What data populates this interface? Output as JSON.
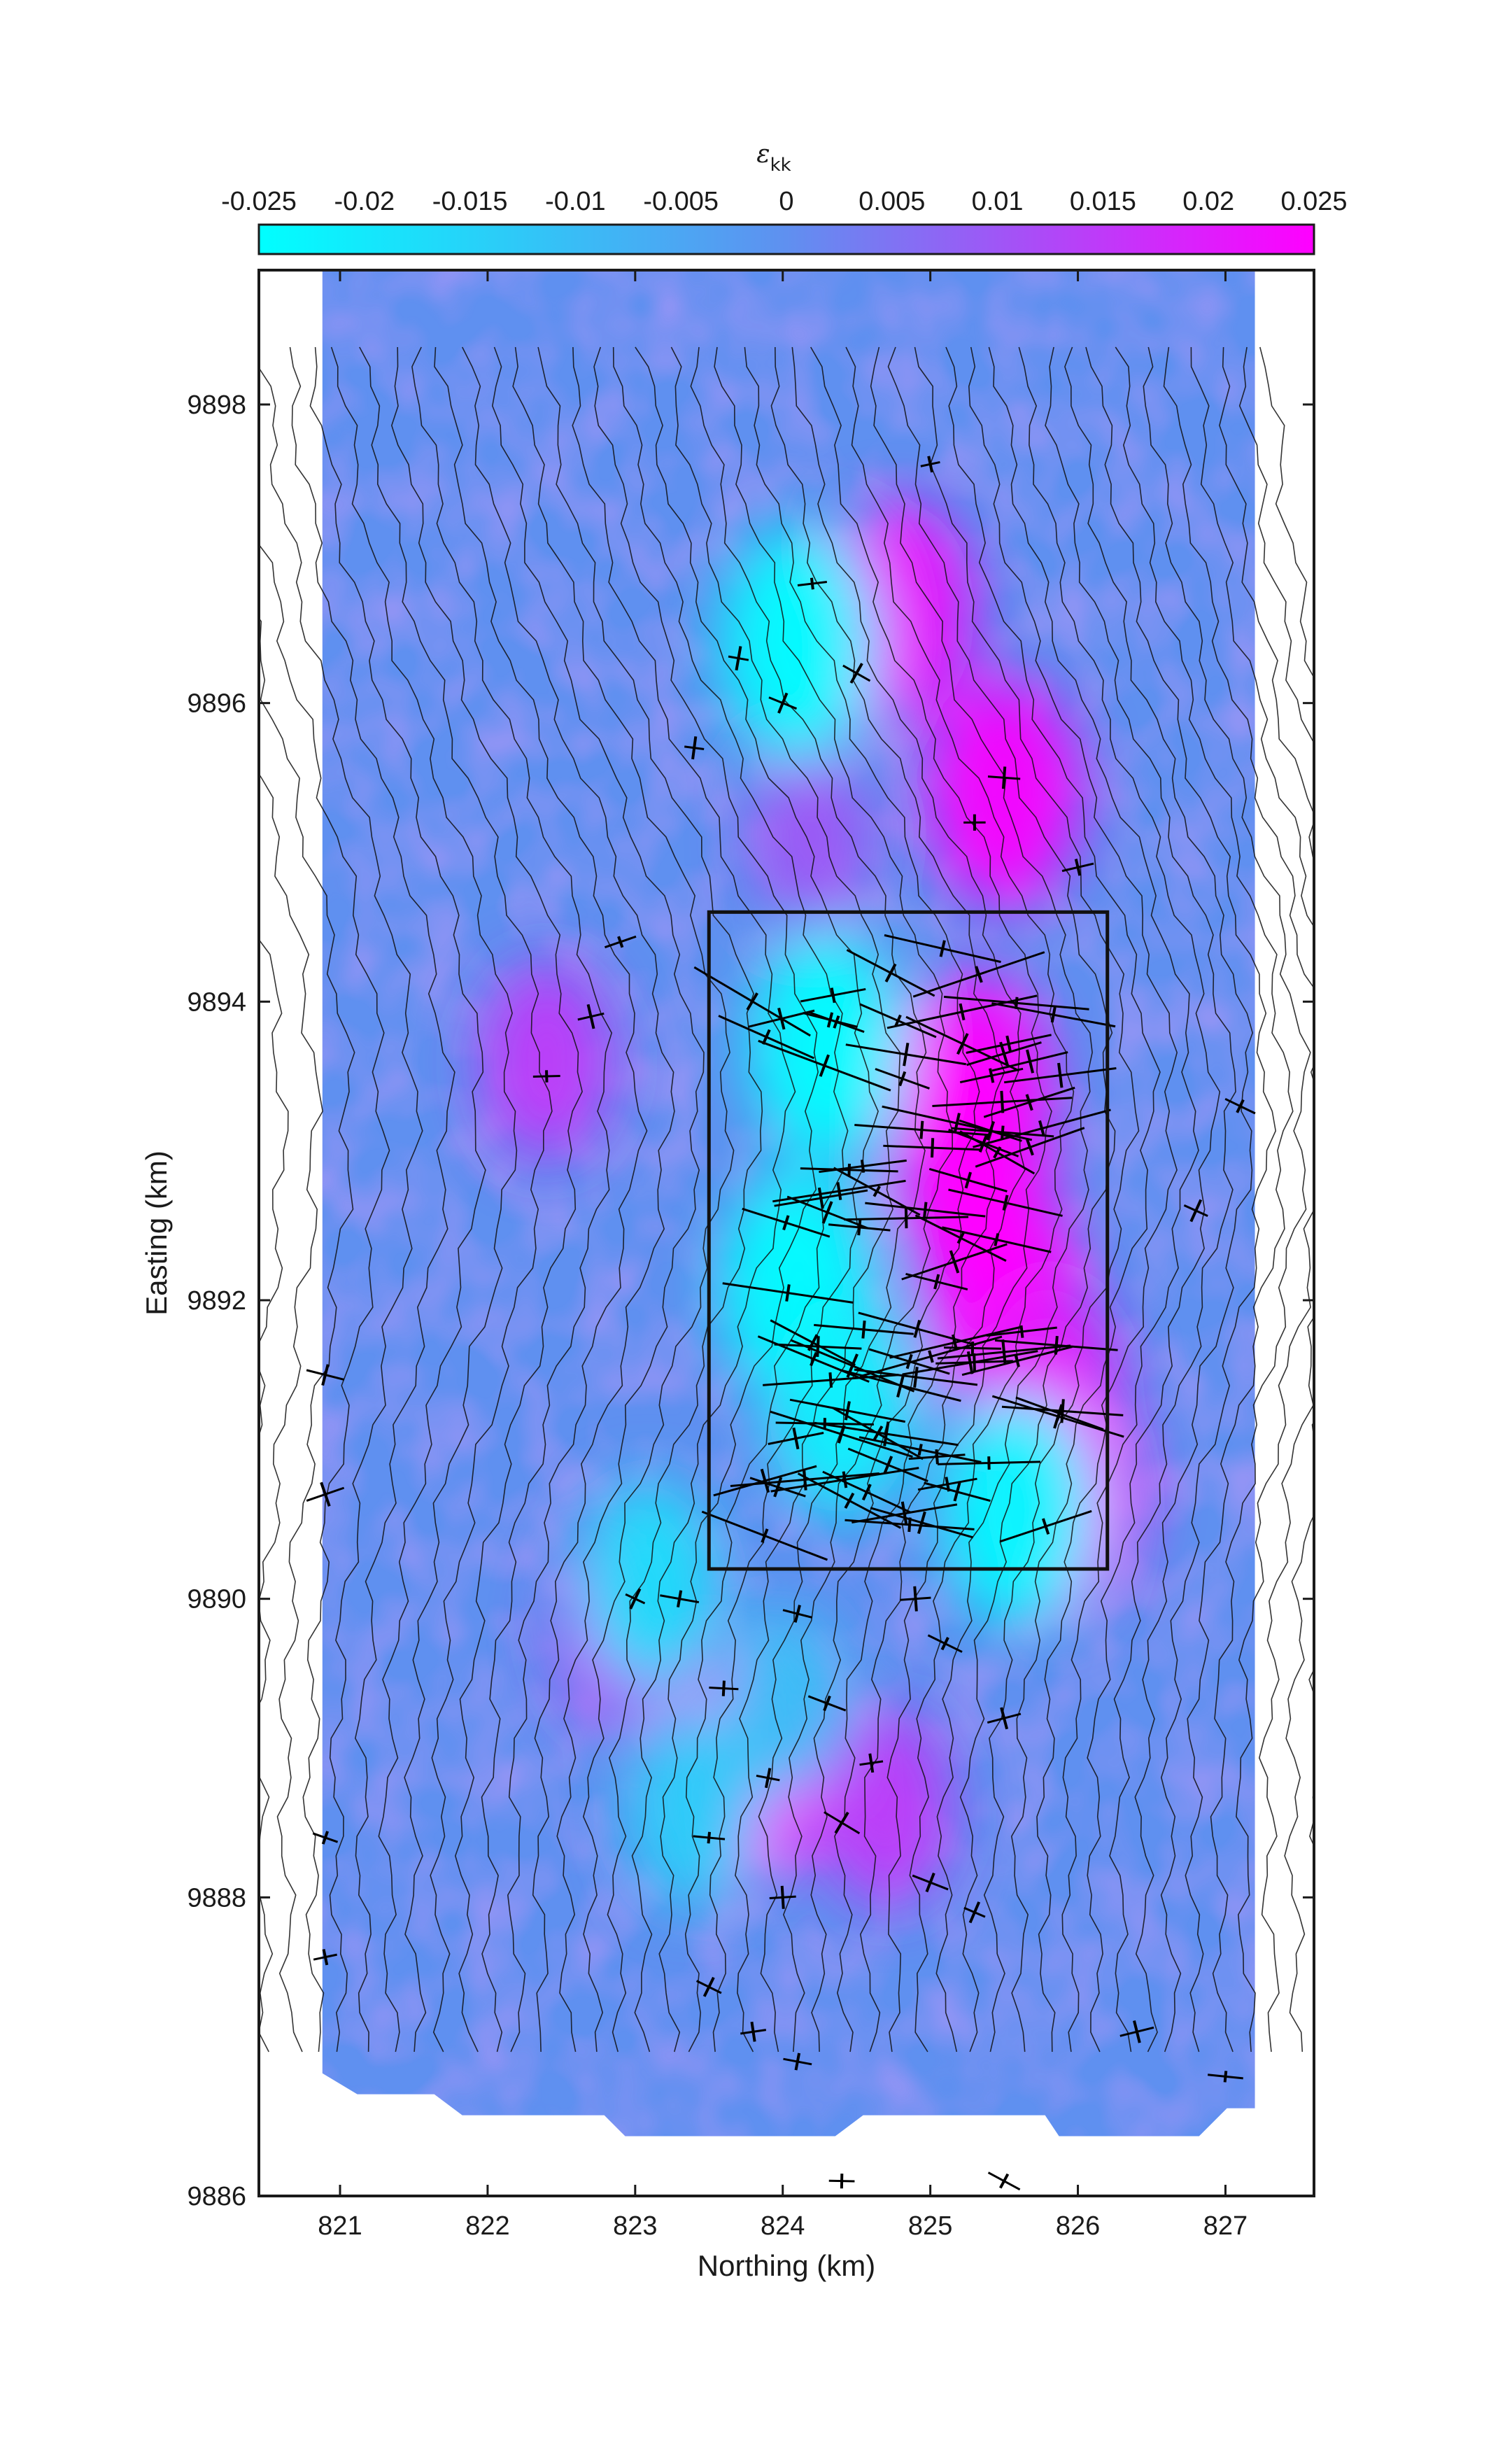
{
  "chart_data": {
    "type": "heatmap",
    "title": "",
    "xlabel": "Northing (km)",
    "ylabel": "Easting (km)",
    "xlim": [
      820.45,
      827.6
    ],
    "ylim": [
      9886.0,
      9898.9
    ],
    "x_ticks": [
      "821",
      "822",
      "823",
      "824",
      "825",
      "826",
      "827"
    ],
    "y_ticks": [
      "9886",
      "9888",
      "9890",
      "9892",
      "9894",
      "9896",
      "9898"
    ],
    "colorbar": {
      "label_main": "ε",
      "label_sub": "kk",
      "min": -0.025,
      "max": 0.025,
      "ticks": [
        "-0.025",
        "-0.02",
        "-0.015",
        "-0.01",
        "-0.005",
        "0",
        "0.005",
        "0.01",
        "0.015",
        "0.02",
        "0.025"
      ],
      "colormap": [
        "#00ffff",
        "#5f90f0",
        "#ff00ff"
      ],
      "location": "top"
    },
    "data_extent": {
      "x": [
        820.88,
        827.2
      ],
      "y": [
        9886.4,
        9898.9
      ]
    },
    "hotspots": [
      {
        "x": 824.8,
        "y": 9896.6,
        "value": 0.022
      },
      {
        "x": 825.5,
        "y": 9895.4,
        "value": 0.024
      },
      {
        "x": 825.3,
        "y": 9893.4,
        "value": 0.025
      },
      {
        "x": 825.3,
        "y": 9892.8,
        "value": 0.025
      },
      {
        "x": 825.5,
        "y": 9892.0,
        "value": 0.025
      },
      {
        "x": 825.8,
        "y": 9891.4,
        "value": 0.02
      },
      {
        "x": 825.9,
        "y": 9890.7,
        "value": 0.025
      },
      {
        "x": 823.8,
        "y": 9888.9,
        "value": 0.025
      },
      {
        "x": 822.4,
        "y": 9893.6,
        "value": 0.015
      },
      {
        "x": 822.9,
        "y": 9889.8,
        "value": 0.015
      },
      {
        "x": 824.7,
        "y": 9888.6,
        "value": 0.015
      },
      {
        "x": 824.2,
        "y": 9895.1,
        "value": 0.01
      },
      {
        "x": 824.1,
        "y": 9896.4,
        "value": -0.025
      },
      {
        "x": 824.3,
        "y": 9893.7,
        "value": -0.025
      },
      {
        "x": 824.1,
        "y": 9892.1,
        "value": -0.025
      },
      {
        "x": 824.4,
        "y": 9891.3,
        "value": -0.022
      },
      {
        "x": 825.6,
        "y": 9890.6,
        "value": -0.025
      },
      {
        "x": 823.1,
        "y": 9890.1,
        "value": -0.018
      },
      {
        "x": 824.0,
        "y": 9889.3,
        "value": -0.012
      },
      {
        "x": 823.4,
        "y": 9888.6,
        "value": -0.015
      }
    ],
    "annotations": [
      {
        "type": "rectangle",
        "x": [
          823.5,
          826.2
        ],
        "y": [
          9890.2,
          9894.6
        ]
      }
    ]
  }
}
